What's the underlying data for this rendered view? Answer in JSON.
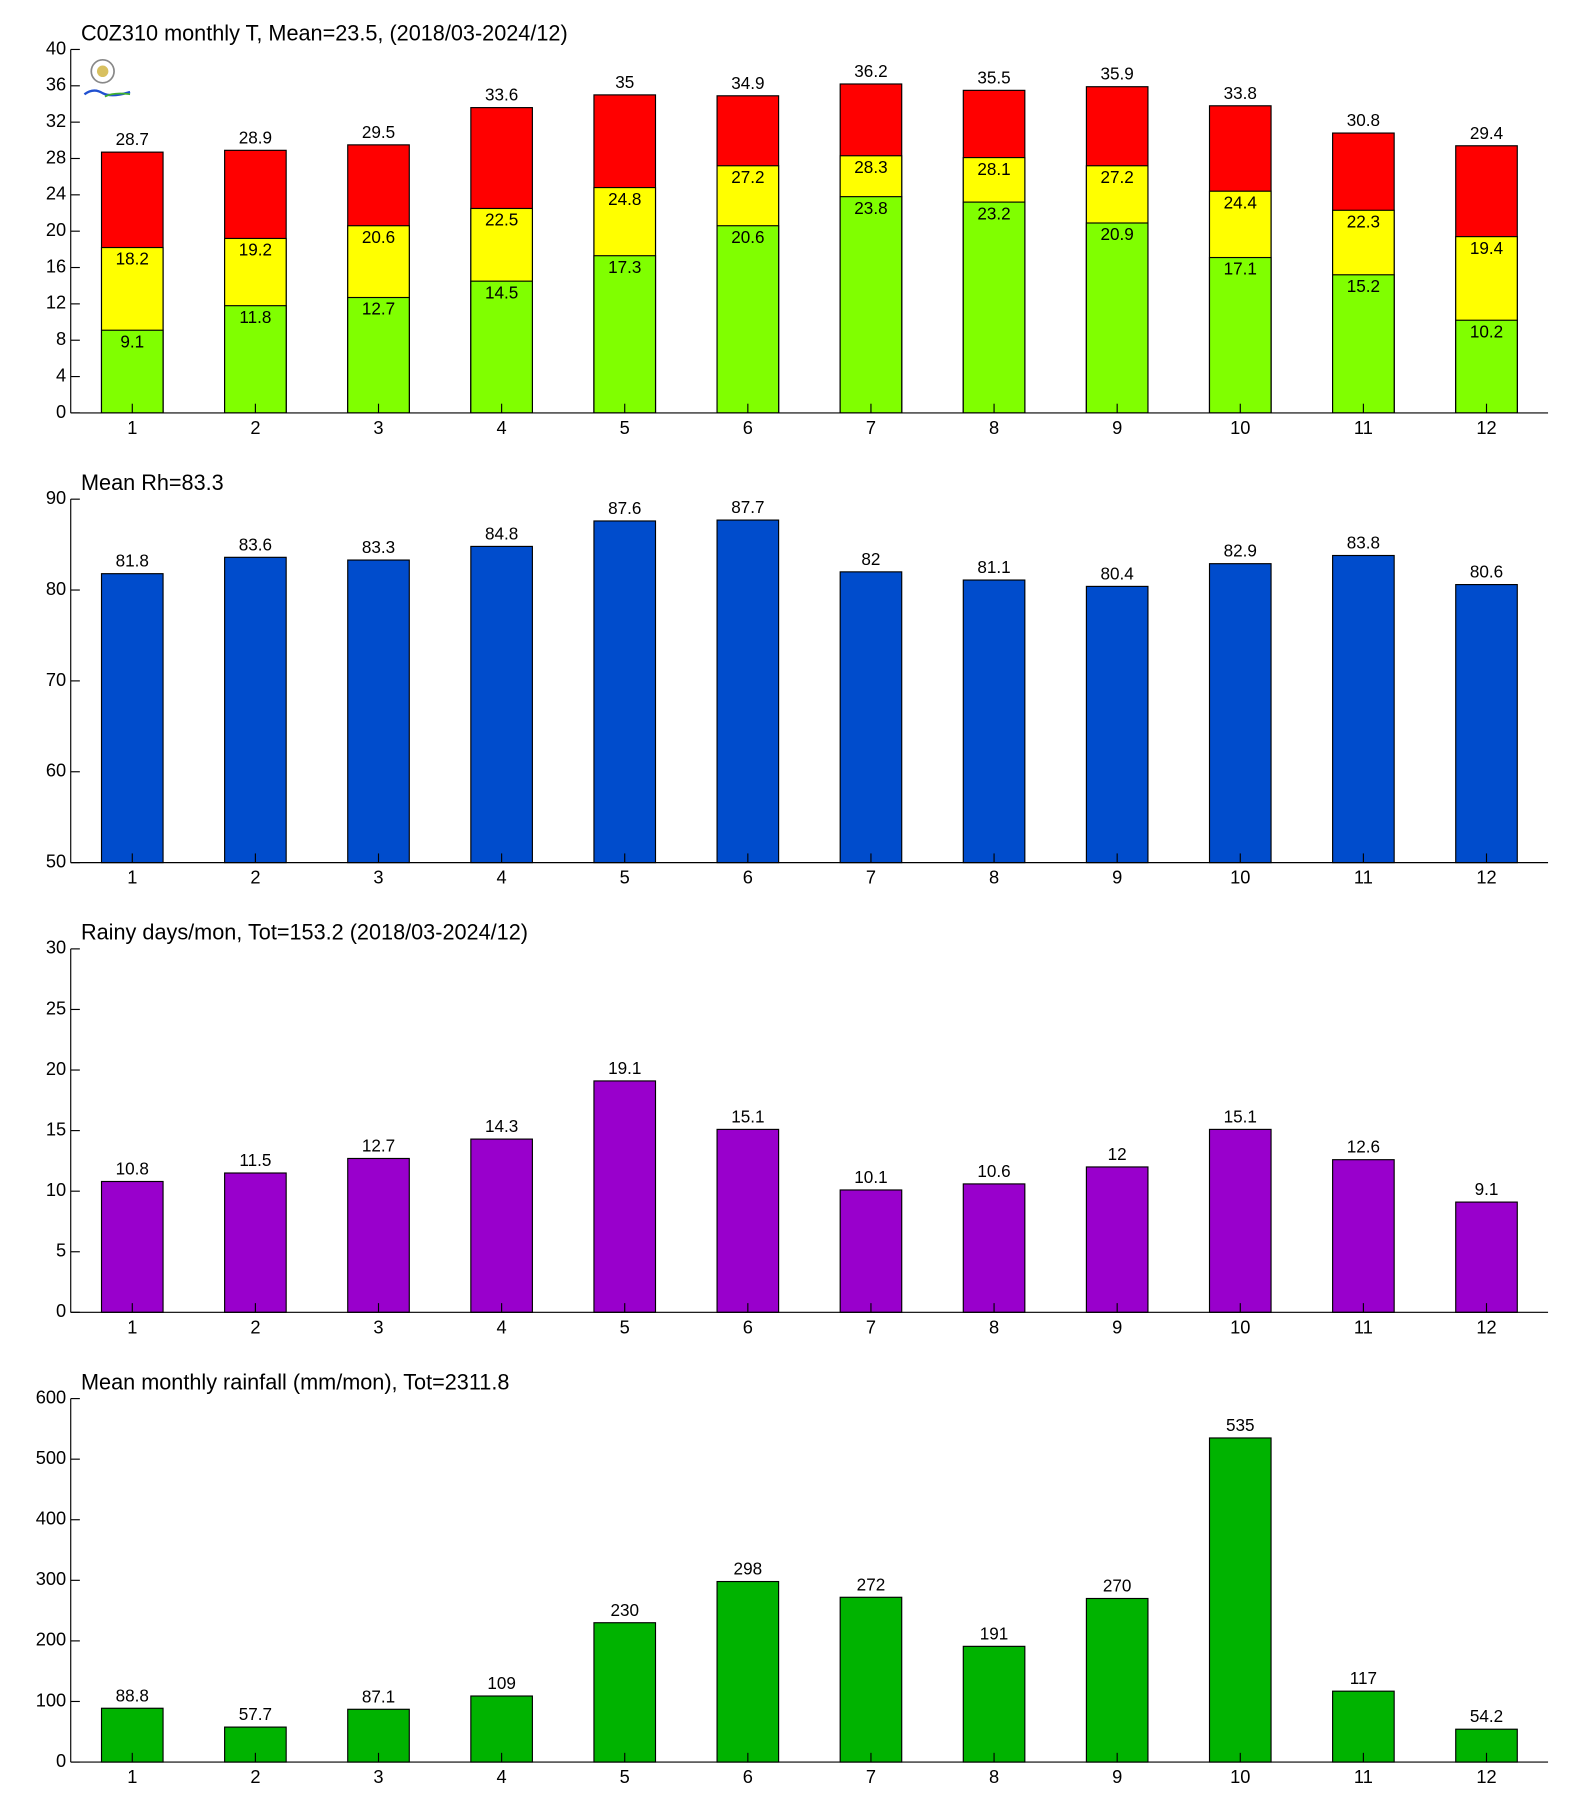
{
  "chart_data": [
    {
      "type": "bar",
      "title": "C0Z310 monthly T, Mean=23.5, (2018/03-2024/12)",
      "categories": [
        "1",
        "2",
        "3",
        "4",
        "5",
        "6",
        "7",
        "8",
        "9",
        "10",
        "11",
        "12"
      ],
      "series": [
        {
          "color": "#ff0000",
          "values": [
            28.7,
            28.9,
            29.5,
            33.6,
            35,
            34.9,
            36.2,
            35.5,
            35.9,
            33.8,
            30.8,
            29.4
          ]
        },
        {
          "color": "#ffff00",
          "values": [
            18.2,
            19.2,
            20.6,
            22.5,
            24.8,
            27.2,
            28.3,
            28.1,
            27.2,
            24.4,
            22.3,
            19.4
          ]
        },
        {
          "color": "#80ff00",
          "values": [
            9.1,
            11.8,
            12.7,
            14.5,
            17.3,
            20.6,
            23.8,
            23.2,
            20.9,
            17.1,
            15.2,
            10.2
          ]
        }
      ],
      "ylim": [
        0,
        40
      ],
      "yticks": [
        0,
        4,
        8,
        12,
        16,
        20,
        24,
        28,
        32,
        36,
        40
      ]
    },
    {
      "type": "bar",
      "title": "Mean Rh=83.3",
      "categories": [
        "1",
        "2",
        "3",
        "4",
        "5",
        "6",
        "7",
        "8",
        "9",
        "10",
        "11",
        "12"
      ],
      "series": [
        {
          "color": "#004ccc",
          "values": [
            81.8,
            83.6,
            83.3,
            84.8,
            87.6,
            87.7,
            82,
            81.1,
            80.4,
            82.9,
            83.8,
            80.6
          ]
        }
      ],
      "ylim": [
        50,
        90
      ],
      "yticks": [
        50,
        60,
        70,
        80,
        90
      ]
    },
    {
      "type": "bar",
      "title": "Rainy days/mon, Tot=153.2 (2018/03-2024/12)",
      "categories": [
        "1",
        "2",
        "3",
        "4",
        "5",
        "6",
        "7",
        "8",
        "9",
        "10",
        "11",
        "12"
      ],
      "series": [
        {
          "color": "#9900cc",
          "values": [
            10.8,
            11.5,
            12.7,
            14.3,
            19.1,
            15.1,
            10.1,
            10.6,
            12,
            15.1,
            12.6,
            9.1
          ]
        }
      ],
      "ylim": [
        0,
        30
      ],
      "yticks": [
        0,
        5,
        10,
        15,
        20,
        25,
        30
      ]
    },
    {
      "type": "bar",
      "title": "Mean monthly rainfall (mm/mon), Tot=2311.8",
      "categories": [
        "1",
        "2",
        "3",
        "4",
        "5",
        "6",
        "7",
        "8",
        "9",
        "10",
        "11",
        "12"
      ],
      "series": [
        {
          "color": "#00b300",
          "values": [
            88.8,
            57.7,
            87.1,
            109,
            230,
            298,
            272,
            191,
            270,
            535,
            117,
            54.2
          ]
        }
      ],
      "ylim": [
        0,
        600
      ],
      "yticks": [
        0,
        100,
        200,
        300,
        400,
        500,
        600
      ]
    }
  ]
}
